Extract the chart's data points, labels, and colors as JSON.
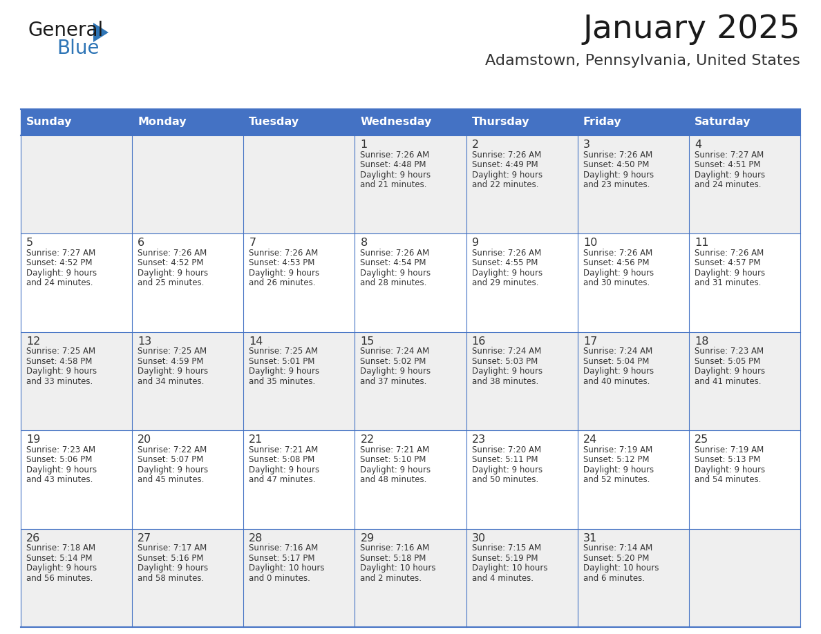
{
  "title": "January 2025",
  "subtitle": "Adamstown, Pennsylvania, United States",
  "days_of_week": [
    "Sunday",
    "Monday",
    "Tuesday",
    "Wednesday",
    "Thursday",
    "Friday",
    "Saturday"
  ],
  "header_bg": "#4472C4",
  "header_text": "#FFFFFF",
  "row_bg_even": "#EFEFEF",
  "row_bg_odd": "#FFFFFF",
  "border_color": "#4472C4",
  "text_color": "#333333",
  "title_color": "#1a1a1a",
  "subtitle_color": "#333333",
  "general_black": "#1a1a1a",
  "general_blue_text": "#2E75B6",
  "triangle_color": "#2E75B6",
  "calendar_data": [
    {
      "day": 1,
      "col": 3,
      "row": 0,
      "sunrise": "7:26 AM",
      "sunset": "4:48 PM",
      "daylight_h": "9 hours",
      "daylight_m": "and 21 minutes."
    },
    {
      "day": 2,
      "col": 4,
      "row": 0,
      "sunrise": "7:26 AM",
      "sunset": "4:49 PM",
      "daylight_h": "9 hours",
      "daylight_m": "and 22 minutes."
    },
    {
      "day": 3,
      "col": 5,
      "row": 0,
      "sunrise": "7:26 AM",
      "sunset": "4:50 PM",
      "daylight_h": "9 hours",
      "daylight_m": "and 23 minutes."
    },
    {
      "day": 4,
      "col": 6,
      "row": 0,
      "sunrise": "7:27 AM",
      "sunset": "4:51 PM",
      "daylight_h": "9 hours",
      "daylight_m": "and 24 minutes."
    },
    {
      "day": 5,
      "col": 0,
      "row": 1,
      "sunrise": "7:27 AM",
      "sunset": "4:52 PM",
      "daylight_h": "9 hours",
      "daylight_m": "and 24 minutes."
    },
    {
      "day": 6,
      "col": 1,
      "row": 1,
      "sunrise": "7:26 AM",
      "sunset": "4:52 PM",
      "daylight_h": "9 hours",
      "daylight_m": "and 25 minutes."
    },
    {
      "day": 7,
      "col": 2,
      "row": 1,
      "sunrise": "7:26 AM",
      "sunset": "4:53 PM",
      "daylight_h": "9 hours",
      "daylight_m": "and 26 minutes."
    },
    {
      "day": 8,
      "col": 3,
      "row": 1,
      "sunrise": "7:26 AM",
      "sunset": "4:54 PM",
      "daylight_h": "9 hours",
      "daylight_m": "and 28 minutes."
    },
    {
      "day": 9,
      "col": 4,
      "row": 1,
      "sunrise": "7:26 AM",
      "sunset": "4:55 PM",
      "daylight_h": "9 hours",
      "daylight_m": "and 29 minutes."
    },
    {
      "day": 10,
      "col": 5,
      "row": 1,
      "sunrise": "7:26 AM",
      "sunset": "4:56 PM",
      "daylight_h": "9 hours",
      "daylight_m": "and 30 minutes."
    },
    {
      "day": 11,
      "col": 6,
      "row": 1,
      "sunrise": "7:26 AM",
      "sunset": "4:57 PM",
      "daylight_h": "9 hours",
      "daylight_m": "and 31 minutes."
    },
    {
      "day": 12,
      "col": 0,
      "row": 2,
      "sunrise": "7:25 AM",
      "sunset": "4:58 PM",
      "daylight_h": "9 hours",
      "daylight_m": "and 33 minutes."
    },
    {
      "day": 13,
      "col": 1,
      "row": 2,
      "sunrise": "7:25 AM",
      "sunset": "4:59 PM",
      "daylight_h": "9 hours",
      "daylight_m": "and 34 minutes."
    },
    {
      "day": 14,
      "col": 2,
      "row": 2,
      "sunrise": "7:25 AM",
      "sunset": "5:01 PM",
      "daylight_h": "9 hours",
      "daylight_m": "and 35 minutes."
    },
    {
      "day": 15,
      "col": 3,
      "row": 2,
      "sunrise": "7:24 AM",
      "sunset": "5:02 PM",
      "daylight_h": "9 hours",
      "daylight_m": "and 37 minutes."
    },
    {
      "day": 16,
      "col": 4,
      "row": 2,
      "sunrise": "7:24 AM",
      "sunset": "5:03 PM",
      "daylight_h": "9 hours",
      "daylight_m": "and 38 minutes."
    },
    {
      "day": 17,
      "col": 5,
      "row": 2,
      "sunrise": "7:24 AM",
      "sunset": "5:04 PM",
      "daylight_h": "9 hours",
      "daylight_m": "and 40 minutes."
    },
    {
      "day": 18,
      "col": 6,
      "row": 2,
      "sunrise": "7:23 AM",
      "sunset": "5:05 PM",
      "daylight_h": "9 hours",
      "daylight_m": "and 41 minutes."
    },
    {
      "day": 19,
      "col": 0,
      "row": 3,
      "sunrise": "7:23 AM",
      "sunset": "5:06 PM",
      "daylight_h": "9 hours",
      "daylight_m": "and 43 minutes."
    },
    {
      "day": 20,
      "col": 1,
      "row": 3,
      "sunrise": "7:22 AM",
      "sunset": "5:07 PM",
      "daylight_h": "9 hours",
      "daylight_m": "and 45 minutes."
    },
    {
      "day": 21,
      "col": 2,
      "row": 3,
      "sunrise": "7:21 AM",
      "sunset": "5:08 PM",
      "daylight_h": "9 hours",
      "daylight_m": "and 47 minutes."
    },
    {
      "day": 22,
      "col": 3,
      "row": 3,
      "sunrise": "7:21 AM",
      "sunset": "5:10 PM",
      "daylight_h": "9 hours",
      "daylight_m": "and 48 minutes."
    },
    {
      "day": 23,
      "col": 4,
      "row": 3,
      "sunrise": "7:20 AM",
      "sunset": "5:11 PM",
      "daylight_h": "9 hours",
      "daylight_m": "and 50 minutes."
    },
    {
      "day": 24,
      "col": 5,
      "row": 3,
      "sunrise": "7:19 AM",
      "sunset": "5:12 PM",
      "daylight_h": "9 hours",
      "daylight_m": "and 52 minutes."
    },
    {
      "day": 25,
      "col": 6,
      "row": 3,
      "sunrise": "7:19 AM",
      "sunset": "5:13 PM",
      "daylight_h": "9 hours",
      "daylight_m": "and 54 minutes."
    },
    {
      "day": 26,
      "col": 0,
      "row": 4,
      "sunrise": "7:18 AM",
      "sunset": "5:14 PM",
      "daylight_h": "9 hours",
      "daylight_m": "and 56 minutes."
    },
    {
      "day": 27,
      "col": 1,
      "row": 4,
      "sunrise": "7:17 AM",
      "sunset": "5:16 PM",
      "daylight_h": "9 hours",
      "daylight_m": "and 58 minutes."
    },
    {
      "day": 28,
      "col": 2,
      "row": 4,
      "sunrise": "7:16 AM",
      "sunset": "5:17 PM",
      "daylight_h": "10 hours",
      "daylight_m": "and 0 minutes."
    },
    {
      "day": 29,
      "col": 3,
      "row": 4,
      "sunrise": "7:16 AM",
      "sunset": "5:18 PM",
      "daylight_h": "10 hours",
      "daylight_m": "and 2 minutes."
    },
    {
      "day": 30,
      "col": 4,
      "row": 4,
      "sunrise": "7:15 AM",
      "sunset": "5:19 PM",
      "daylight_h": "10 hours",
      "daylight_m": "and 4 minutes."
    },
    {
      "day": 31,
      "col": 5,
      "row": 4,
      "sunrise": "7:14 AM",
      "sunset": "5:20 PM",
      "daylight_h": "10 hours",
      "daylight_m": "and 6 minutes."
    }
  ]
}
